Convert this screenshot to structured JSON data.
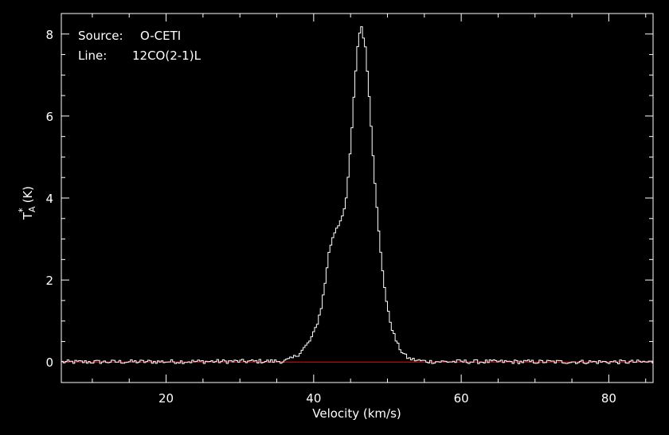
{
  "chart_data": {
    "type": "line",
    "xlabel": "Velocity (km/s)",
    "ylabel_base": "T",
    "ylabel_sup": "*",
    "ylabel_sub": "A",
    "ylabel_unit": "(K)",
    "xlim": [
      5.8,
      86
    ],
    "ylim": [
      -0.5,
      8.5
    ],
    "xticks": [
      20,
      40,
      60,
      80
    ],
    "yticks": [
      0,
      2,
      4,
      6,
      8
    ],
    "grid": false,
    "annotations": {
      "source_key": "Source:",
      "source_value": "O-CETI",
      "line_key": "Line:",
      "line_value": "12CO(2-1)L"
    },
    "series": [
      {
        "color": "#ffffff",
        "style": "histogram",
        "x": [
          5.8,
          36,
          37,
          38,
          38.5,
          39,
          39.5,
          40,
          40.5,
          41,
          41.5,
          42,
          42.5,
          43,
          43.5,
          44,
          44.5,
          45,
          45.5,
          46,
          46.5,
          47,
          47.5,
          48,
          48.5,
          49,
          49.5,
          50,
          50.5,
          51,
          51.5,
          52,
          52.5,
          53,
          54,
          55,
          56,
          86
        ],
        "y": [
          0.0,
          0.02,
          0.08,
          0.2,
          0.3,
          0.4,
          0.52,
          0.7,
          0.95,
          1.3,
          1.85,
          2.6,
          3.0,
          3.25,
          3.4,
          3.55,
          4.1,
          5.2,
          6.6,
          7.8,
          8.2,
          7.7,
          6.6,
          5.2,
          3.9,
          2.8,
          2.0,
          1.3,
          0.9,
          0.6,
          0.38,
          0.24,
          0.14,
          0.08,
          0.04,
          0.02,
          0.01,
          0.0
        ],
        "noise_amplitude": 0.05
      }
    ],
    "baseline": {
      "value": 0,
      "color": "#e01010"
    }
  }
}
